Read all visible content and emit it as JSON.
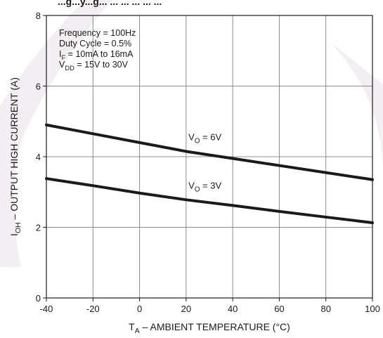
{
  "chart_data": {
    "type": "line",
    "title_fragment": "...g...y...g... ... ... ... ... ...",
    "xlabel": {
      "main": "T",
      "sub": "A",
      "rest": " – AMBIENT TEMPERATURE (°C)"
    },
    "ylabel": {
      "main": "I",
      "sub": "OH",
      "rest": " – OUTPUT HIGH CURRENT (A)"
    },
    "xlim": [
      -40,
      100
    ],
    "ylim": [
      0,
      8
    ],
    "x_ticks": [
      -40,
      -20,
      0,
      20,
      40,
      60,
      80,
      100
    ],
    "y_ticks": [
      0,
      2,
      4,
      6,
      8
    ],
    "grid": true,
    "conditions": [
      {
        "main": "Frequency = 100Hz",
        "sub": "",
        "rest": ""
      },
      {
        "main": "Duty Cycle = 0.5%",
        "sub": "",
        "rest": ""
      },
      {
        "main": "I",
        "sub": "F",
        "rest": " = 10mA to 16mA"
      },
      {
        "main": "V",
        "sub": "DD",
        "rest": " = 15V to 30V"
      }
    ],
    "series": [
      {
        "name": {
          "main": "V",
          "sub": "O",
          "rest": " = 6V"
        },
        "x": [
          -40,
          -20,
          0,
          20,
          40,
          60,
          80,
          100
        ],
        "y": [
          4.9,
          4.65,
          4.4,
          4.15,
          3.95,
          3.75,
          3.55,
          3.35
        ]
      },
      {
        "name": {
          "main": "V",
          "sub": "O",
          "rest": " = 3V"
        },
        "x": [
          -40,
          -20,
          0,
          20,
          40,
          60,
          80,
          100
        ],
        "y": [
          3.38,
          3.18,
          2.97,
          2.78,
          2.62,
          2.45,
          2.29,
          2.13
        ]
      }
    ],
    "colors": {
      "line": "#1a1a1a",
      "grid": "#8c8c8c",
      "watermark": "#f3eef2"
    }
  }
}
